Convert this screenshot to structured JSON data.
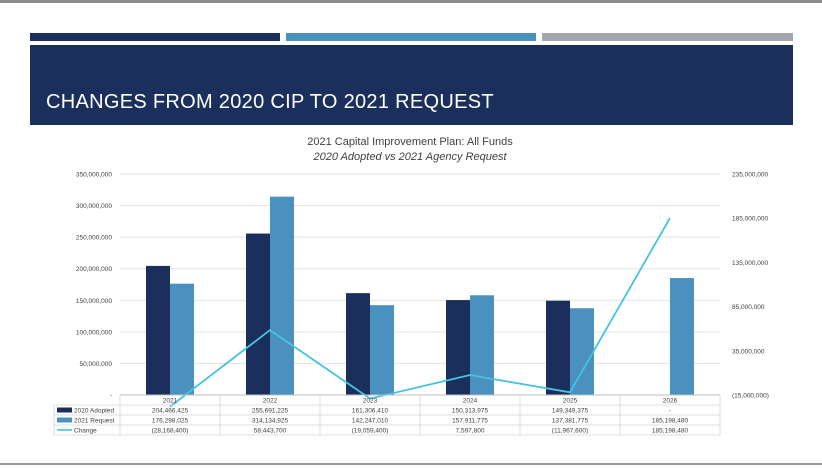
{
  "slide": {
    "title": "CHANGES FROM 2020 CIP TO 2021 REQUEST"
  },
  "colors": {
    "title_band": "#1b2f5c",
    "accent_1": "#1b2f5c",
    "accent_2": "#4b91bf",
    "accent_3": "#a3a6aa",
    "adopted": "#1b2f5c",
    "request": "#4b91bf",
    "change": "#45c3e0"
  },
  "chart_data": {
    "type": "bar",
    "title": "2021 Capital Improvement Plan: All Funds",
    "subtitle": "2020 Adopted vs 2021 Agency Request",
    "categories": [
      "2021",
      "2022",
      "2023",
      "2024",
      "2025",
      "2026"
    ],
    "series": [
      {
        "name": "2020 Adopted",
        "type": "bar",
        "axis": "left",
        "values": [
          204466425,
          255691225,
          161306410,
          150313975,
          149349375,
          null
        ],
        "labels": [
          "204,466,425",
          "255,691,225",
          "161,306,410",
          "150,313,975",
          "149,349,375",
          "-"
        ]
      },
      {
        "name": "2021 Request",
        "type": "bar",
        "axis": "left",
        "values": [
          176298025,
          314134925,
          142247010,
          157911775,
          137381775,
          185198480
        ],
        "labels": [
          "176,298,025",
          "314,134,925",
          "142,247,010",
          "157,911,775",
          "137,381,775",
          "185,198,480"
        ]
      },
      {
        "name": "Change",
        "type": "line",
        "axis": "right",
        "values": [
          -28168400,
          58443700,
          -19059400,
          7597800,
          -11967600,
          185198480
        ],
        "labels": [
          "(28,168,400)",
          "58,443,700",
          "(19,059,400)",
          "7,597,800",
          "(11,967,600)",
          "185,198,480"
        ]
      }
    ],
    "left_axis": {
      "ylim": [
        0,
        350000000
      ],
      "ticks": [
        0,
        50000000,
        100000000,
        150000000,
        200000000,
        250000000,
        300000000,
        350000000
      ],
      "tick_labels": [
        "-",
        "50,000,000",
        "100,000,000",
        "150,000,000",
        "200,000,000",
        "250,000,000",
        "300,000,000",
        "350,000,000"
      ]
    },
    "right_axis": {
      "ylim": [
        -15000000,
        235000000
      ],
      "ticks": [
        -15000000,
        35000000,
        85000000,
        135000000,
        185000000,
        235000000
      ],
      "tick_labels": [
        "(15,000,000)",
        "35,000,000",
        "85,000,000",
        "135,000,000",
        "185,000,000",
        "235,000,000"
      ]
    },
    "grid": true,
    "legend": "data-table"
  }
}
